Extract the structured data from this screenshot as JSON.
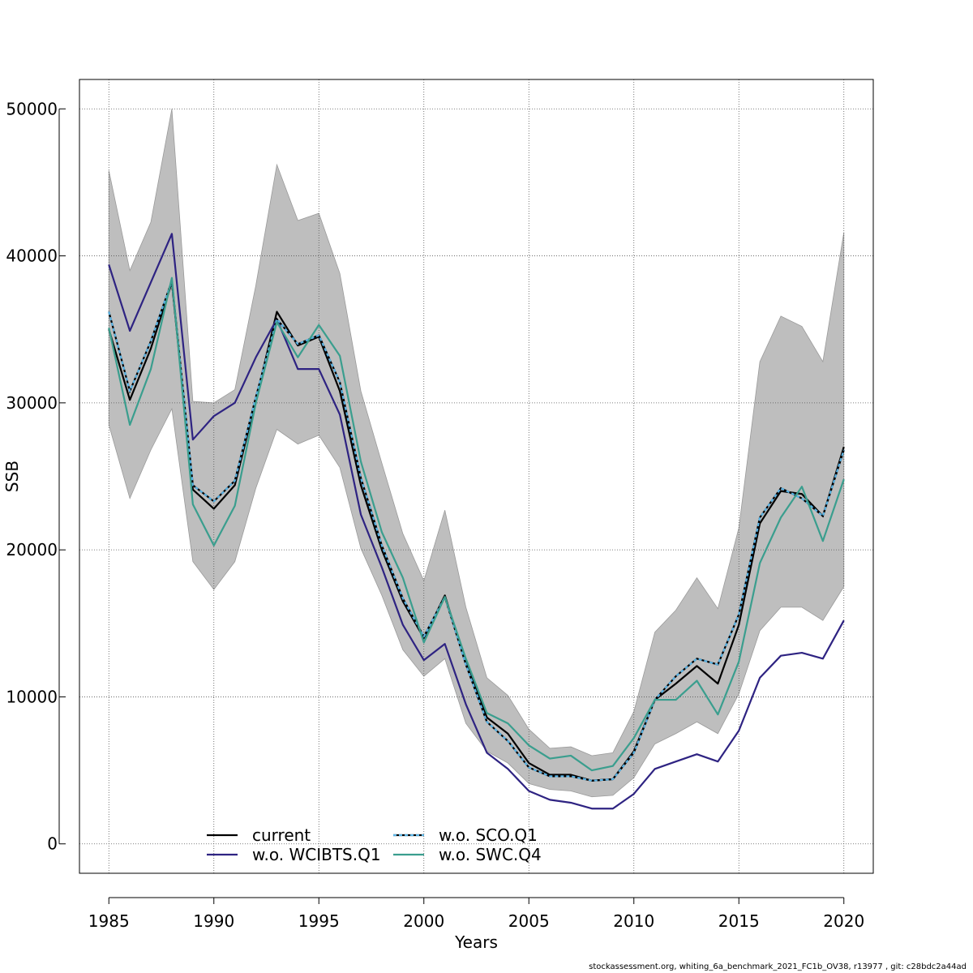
{
  "chart_data": {
    "type": "line",
    "title": "",
    "xlabel": "Years",
    "ylabel": "SSB",
    "xlim": [
      1983.6,
      2021.4
    ],
    "ylim": [
      -2000,
      52000
    ],
    "xticks": [
      1985,
      1990,
      1995,
      2000,
      2005,
      2010,
      2015,
      2020
    ],
    "xtick_labels": [
      "1985",
      "1990",
      "1995",
      "2000",
      "2005",
      "2010",
      "2015",
      "2020"
    ],
    "yticks": [
      0,
      10000,
      20000,
      30000,
      40000,
      50000
    ],
    "ytick_labels": [
      "0",
      "10000",
      "20000",
      "30000",
      "40000",
      "50000"
    ],
    "grid": true,
    "legend_position": "bottom-left",
    "x": [
      1985,
      1986,
      1987,
      1988,
      1989,
      1990,
      1991,
      1992,
      1993,
      1994,
      1995,
      1996,
      1997,
      1998,
      1999,
      2000,
      2001,
      2002,
      2003,
      2004,
      2005,
      2006,
      2007,
      2008,
      2009,
      2010,
      2011,
      2012,
      2013,
      2014,
      2015,
      2016,
      2017,
      2018,
      2019,
      2020
    ],
    "band": {
      "color": "#bebebe",
      "upper": [
        45800,
        39000,
        42300,
        50000,
        30100,
        30000,
        30900,
        38000,
        46200,
        42400,
        42900,
        38800,
        30800,
        25900,
        21100,
        17900,
        22700,
        16100,
        11300,
        10100,
        7800,
        6500,
        6600,
        6000,
        6200,
        9000,
        14400,
        15900,
        18100,
        16000,
        21500,
        32800,
        35900,
        35200,
        32800,
        41600
      ],
      "lower": [
        28500,
        23500,
        26800,
        29600,
        19200,
        17300,
        19200,
        24200,
        28200,
        27200,
        27800,
        25600,
        20100,
        16900,
        13200,
        11400,
        12600,
        8200,
        6300,
        5500,
        4100,
        3700,
        3600,
        3200,
        3300,
        4500,
        6800,
        7500,
        8300,
        7500,
        10200,
        14500,
        16100,
        16100,
        15200,
        17500
      ]
    },
    "series": [
      {
        "name": "current",
        "color": "#000000",
        "dash": "",
        "values": [
          35000,
          30200,
          33700,
          38200,
          24100,
          22800,
          24400,
          30200,
          36200,
          33900,
          34500,
          30800,
          24400,
          20000,
          16500,
          14000,
          16900,
          12300,
          8600,
          7500,
          5500,
          4700,
          4700,
          4300,
          4400,
          6300,
          9800,
          10900,
          12100,
          10900,
          14900,
          21800,
          24000,
          23800,
          22300,
          27000
        ]
      },
      {
        "name": "w.o. WCIBTS.Q1",
        "color": "#2e2382",
        "dash": "",
        "values": [
          39400,
          34900,
          38200,
          41500,
          27500,
          29100,
          30000,
          33100,
          35700,
          32300,
          32300,
          29200,
          22400,
          18800,
          14900,
          12500,
          13600,
          9500,
          6200,
          5100,
          3600,
          3000,
          2800,
          2400,
          2400,
          3400,
          5100,
          5600,
          6100,
          5600,
          7700,
          11300,
          12800,
          13000,
          12600,
          15200
        ]
      },
      {
        "name": "w.o. SCO.Q1",
        "color": "#5ab4e6",
        "dash": "4,3",
        "values": [
          36200,
          30800,
          34200,
          38300,
          24400,
          23300,
          24700,
          30400,
          35700,
          34000,
          34600,
          31400,
          24900,
          20300,
          16700,
          14100,
          16800,
          12200,
          8300,
          7000,
          5200,
          4600,
          4600,
          4300,
          4400,
          6200,
          9800,
          11400,
          12600,
          12200,
          15600,
          22200,
          24200,
          23500,
          22300,
          26800
        ]
      },
      {
        "name": "w.o. SWC.Q4",
        "color": "#3a9e8e",
        "dash": "",
        "values": [
          35100,
          28500,
          32300,
          38500,
          23100,
          20300,
          23000,
          30000,
          35500,
          33100,
          35300,
          33200,
          26000,
          21200,
          18100,
          13700,
          16800,
          12600,
          8900,
          8200,
          6700,
          5800,
          6000,
          5000,
          5300,
          7200,
          9800,
          9800,
          11100,
          8800,
          12400,
          19100,
          22200,
          24300,
          20600,
          24800
        ]
      }
    ]
  },
  "footer": "stockassessment.org, whiting_6a_benchmark_2021_FC1b_OV38, r13977 , git: c28bdc2a44ad"
}
